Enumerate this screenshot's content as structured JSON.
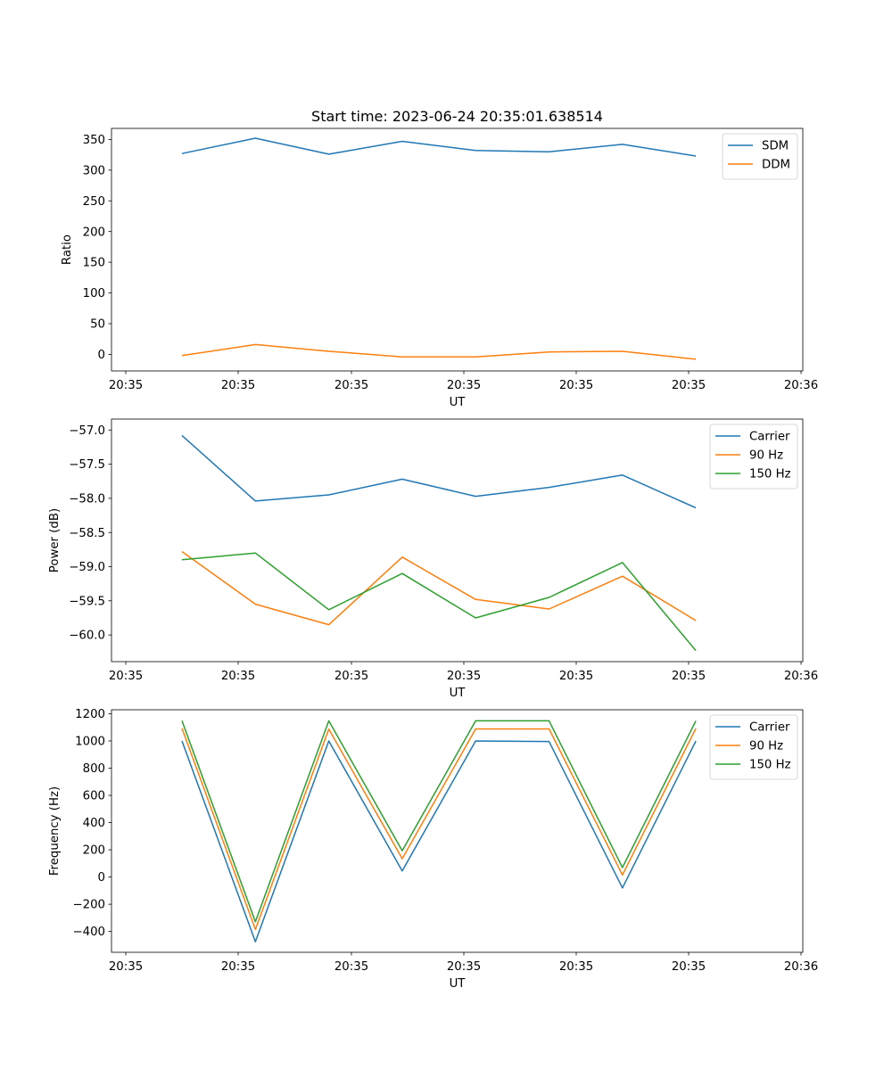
{
  "title": "Start time: 2023-06-24 20:35:01.638514",
  "colors": {
    "blue": "#1f77b4",
    "orange": "#ff7f0e",
    "green": "#2ca02c"
  },
  "chart_data": [
    {
      "type": "line",
      "xlabel": "UT",
      "ylabel": "Ratio",
      "x_tick_labels": [
        "20:35",
        "20:35",
        "20:35",
        "20:35",
        "20:35",
        "20:35",
        "20:36"
      ],
      "y_ticks": [
        0,
        50,
        100,
        150,
        200,
        250,
        300,
        350
      ],
      "ylim": [
        -27,
        368
      ],
      "legend_position": "top-right",
      "series": [
        {
          "name": "SDM",
          "color": "blue",
          "values": [
            327,
            352,
            326,
            347,
            332,
            330,
            342,
            323
          ]
        },
        {
          "name": "DDM",
          "color": "orange",
          "values": [
            -2,
            16,
            5,
            -4,
            -4,
            4,
            5,
            -8
          ]
        }
      ]
    },
    {
      "type": "line",
      "xlabel": "UT",
      "ylabel": "Power (dB)",
      "x_tick_labels": [
        "20:35",
        "20:35",
        "20:35",
        "20:35",
        "20:35",
        "20:35",
        "20:36"
      ],
      "y_ticks": [
        -57.0,
        -57.5,
        -58.0,
        -58.5,
        -59.0,
        -59.5,
        -60.0
      ],
      "ylim": [
        -60.39,
        -56.84
      ],
      "legend_position": "top-right",
      "series": [
        {
          "name": "Carrier",
          "color": "blue",
          "values": [
            -57.08,
            -58.04,
            -57.95,
            -57.72,
            -57.97,
            -57.84,
            -57.66,
            -58.14
          ]
        },
        {
          "name": "90 Hz",
          "color": "orange",
          "values": [
            -58.78,
            -59.55,
            -59.85,
            -58.86,
            -59.48,
            -59.62,
            -59.14,
            -59.79
          ]
        },
        {
          "name": "150 Hz",
          "color": "green",
          "values": [
            -58.9,
            -58.8,
            -59.63,
            -59.1,
            -59.75,
            -59.45,
            -58.94,
            -60.23
          ]
        }
      ]
    },
    {
      "type": "line",
      "xlabel": "UT",
      "ylabel": "Frequency (Hz)",
      "x_tick_labels": [
        "20:35",
        "20:35",
        "20:35",
        "20:35",
        "20:35",
        "20:35",
        "20:36"
      ],
      "y_ticks": [
        -400,
        -200,
        0,
        200,
        400,
        600,
        800,
        1000,
        1200
      ],
      "ylim": [
        -553,
        1229
      ],
      "legend_position": "top-right",
      "series": [
        {
          "name": "Carrier",
          "color": "blue",
          "values": [
            1000,
            -475,
            1000,
            45,
            1000,
            996,
            -80,
            1000
          ]
        },
        {
          "name": "90 Hz",
          "color": "orange",
          "values": [
            1092,
            -385,
            1087,
            135,
            1088,
            1088,
            15,
            1092
          ]
        },
        {
          "name": "150 Hz",
          "color": "green",
          "values": [
            1148,
            -328,
            1148,
            193,
            1148,
            1148,
            70,
            1148
          ]
        }
      ]
    }
  ]
}
